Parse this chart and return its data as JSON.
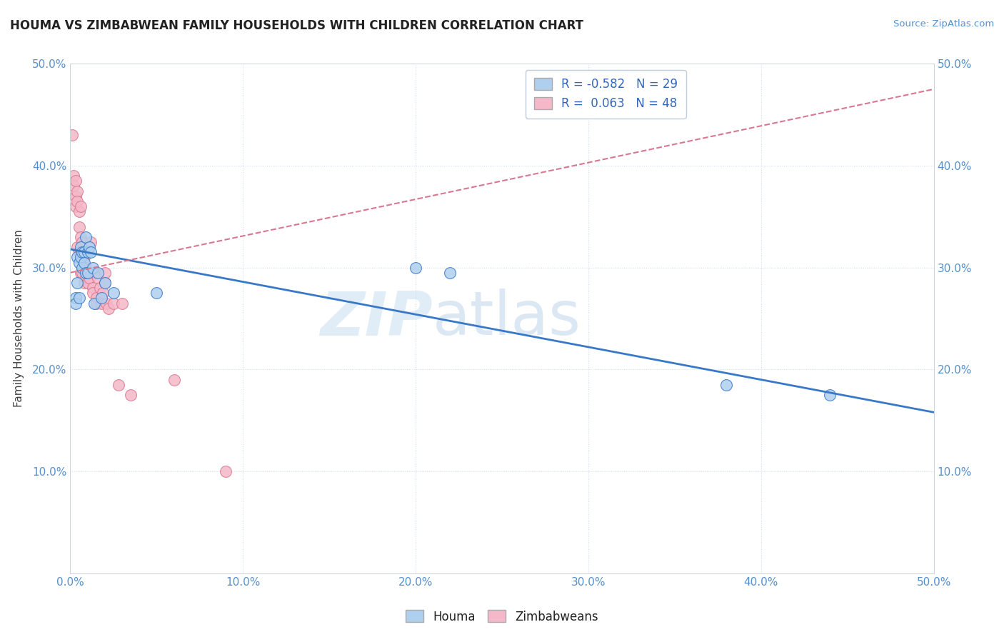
{
  "title": "HOUMA VS ZIMBABWEAN FAMILY HOUSEHOLDS WITH CHILDREN CORRELATION CHART",
  "source": "Source: ZipAtlas.com",
  "ylabel": "Family Households with Children",
  "xlim": [
    0.0,
    0.5
  ],
  "ylim": [
    0.0,
    0.5
  ],
  "xtick_vals": [
    0.0,
    0.1,
    0.2,
    0.3,
    0.4,
    0.5
  ],
  "ytick_vals": [
    0.0,
    0.1,
    0.2,
    0.3,
    0.4,
    0.5
  ],
  "houma_color": "#aecfee",
  "zimbabwean_color": "#f4b8c8",
  "houma_line_color": "#3878c8",
  "zimbabwean_line_color": "#d87890",
  "R_houma": -0.582,
  "N_houma": 29,
  "R_zimbabwean": 0.063,
  "N_zimbabwean": 48,
  "watermark_zip": "ZIP",
  "watermark_atlas": "atlas",
  "houma_x": [
    0.003,
    0.003,
    0.004,
    0.004,
    0.005,
    0.005,
    0.006,
    0.006,
    0.007,
    0.007,
    0.008,
    0.008,
    0.009,
    0.009,
    0.01,
    0.01,
    0.011,
    0.012,
    0.013,
    0.014,
    0.016,
    0.018,
    0.02,
    0.025,
    0.05,
    0.2,
    0.22,
    0.38,
    0.44
  ],
  "houma_y": [
    0.27,
    0.265,
    0.31,
    0.285,
    0.305,
    0.27,
    0.32,
    0.31,
    0.315,
    0.3,
    0.315,
    0.305,
    0.33,
    0.295,
    0.315,
    0.295,
    0.32,
    0.315,
    0.3,
    0.265,
    0.295,
    0.27,
    0.285,
    0.275,
    0.275,
    0.3,
    0.295,
    0.185,
    0.175
  ],
  "zimbabwean_x": [
    0.001,
    0.002,
    0.002,
    0.003,
    0.003,
    0.003,
    0.004,
    0.004,
    0.004,
    0.005,
    0.005,
    0.005,
    0.006,
    0.006,
    0.006,
    0.006,
    0.007,
    0.007,
    0.007,
    0.008,
    0.008,
    0.008,
    0.009,
    0.009,
    0.01,
    0.01,
    0.011,
    0.011,
    0.012,
    0.013,
    0.013,
    0.014,
    0.015,
    0.015,
    0.016,
    0.017,
    0.018,
    0.019,
    0.02,
    0.02,
    0.021,
    0.022,
    0.025,
    0.028,
    0.03,
    0.035,
    0.06,
    0.09
  ],
  "zimbabwean_y": [
    0.43,
    0.39,
    0.38,
    0.385,
    0.37,
    0.36,
    0.375,
    0.365,
    0.32,
    0.355,
    0.34,
    0.315,
    0.36,
    0.33,
    0.315,
    0.295,
    0.325,
    0.31,
    0.295,
    0.31,
    0.3,
    0.285,
    0.3,
    0.29,
    0.295,
    0.285,
    0.295,
    0.29,
    0.325,
    0.28,
    0.275,
    0.295,
    0.27,
    0.265,
    0.29,
    0.28,
    0.265,
    0.275,
    0.285,
    0.295,
    0.265,
    0.26,
    0.265,
    0.185,
    0.265,
    0.175,
    0.19,
    0.1
  ],
  "houma_trendline_x": [
    0.0,
    0.5
  ],
  "houma_trendline_y": [
    0.318,
    0.158
  ],
  "zimbabwean_trendline_x": [
    0.0,
    0.5
  ],
  "zimbabwean_trendline_y": [
    0.295,
    0.475
  ]
}
